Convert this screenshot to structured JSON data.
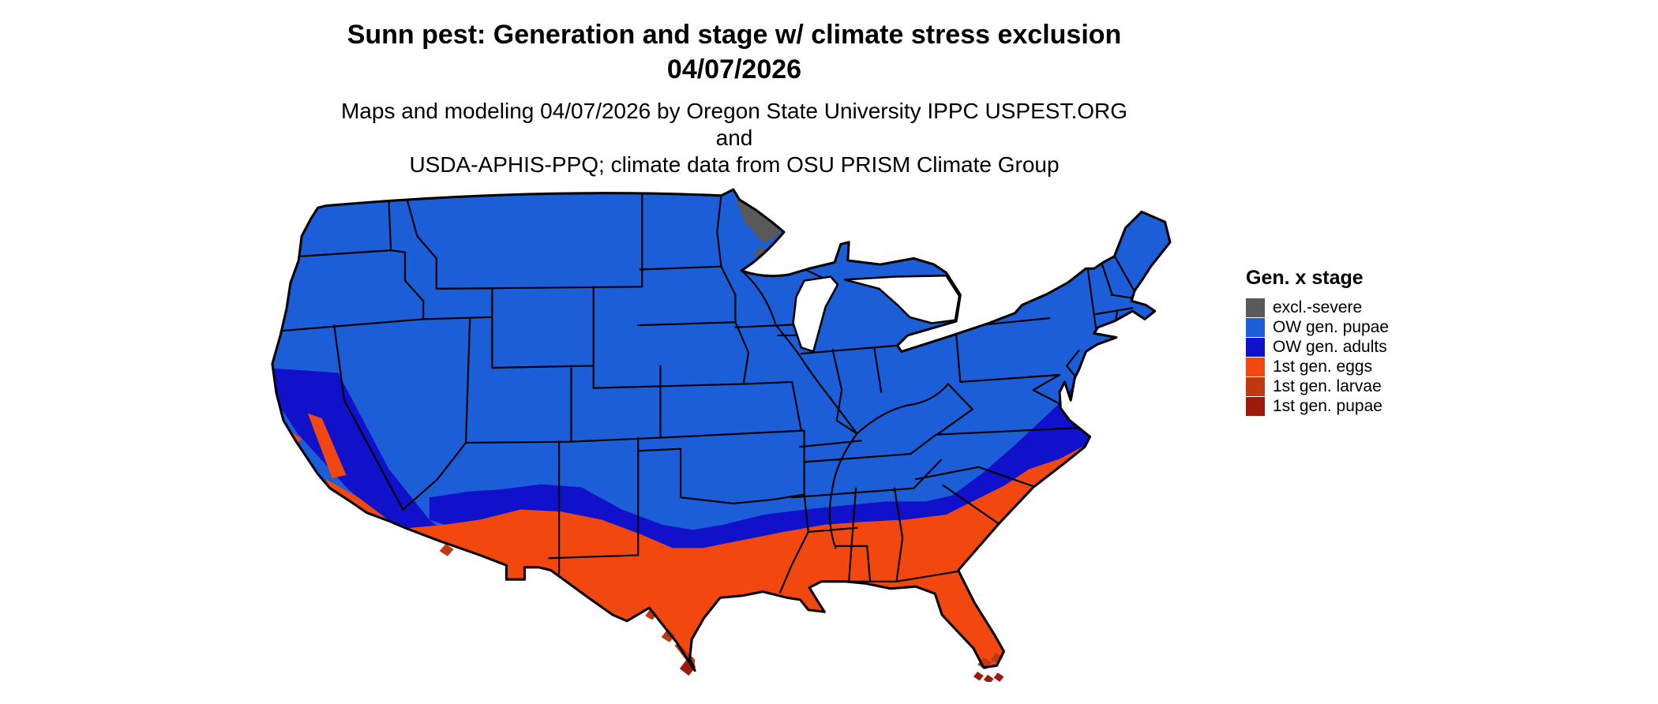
{
  "title": {
    "line1": "Sunn pest: Generation and stage w/ climate stress exclusion",
    "line2": "04/07/2026"
  },
  "subtitle": {
    "line1": "Maps and modeling 04/07/2026 by Oregon State University IPPC USPEST.ORG and",
    "line2": "USDA-APHIS-PPQ; climate data from OSU PRISM Climate Group"
  },
  "colors": {
    "excl_severe": "#595959",
    "ow_pupae": "#1b5ed8",
    "ow_adults": "#1111cb",
    "gen1_eggs": "#f2470e",
    "gen1_larvae": "#bf3a12",
    "gen1_pupae": "#9c1a0b",
    "border": "#000000",
    "water": "#ffffff"
  },
  "legend": {
    "title": "Gen. x stage",
    "items": [
      {
        "label": "excl.-severe",
        "color_key": "excl_severe"
      },
      {
        "label": "OW gen. pupae",
        "color_key": "ow_pupae"
      },
      {
        "label": "OW gen. adults",
        "color_key": "ow_adults"
      },
      {
        "label": "1st gen. eggs",
        "color_key": "gen1_eggs"
      },
      {
        "label": "1st gen. larvae",
        "color_key": "gen1_larvae"
      },
      {
        "label": "1st gen. pupae",
        "color_key": "gen1_pupae"
      }
    ]
  }
}
